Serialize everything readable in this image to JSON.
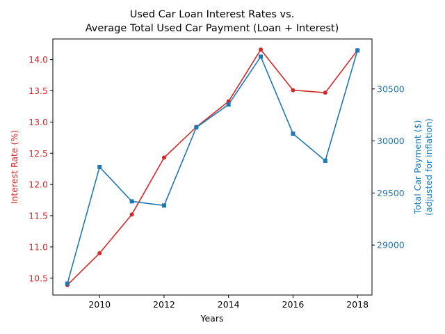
{
  "chart_data": {
    "type": "line",
    "title_lines": [
      "Used Car Loan Interest Rates vs.",
      "Average Total Used Car Payment (Loan + Interest)"
    ],
    "xlabel": "Years",
    "ylabel_left": "Interest Rate (%)",
    "ylabel_right_lines": [
      "Total Car Payment ($)",
      "(adjusted for inflation)"
    ],
    "x": [
      2009,
      2010,
      2011,
      2012,
      2013,
      2014,
      2015,
      2016,
      2017,
      2018
    ],
    "xlim": [
      2008.55,
      2018.45
    ],
    "x_ticks": [
      2010,
      2012,
      2014,
      2016,
      2018
    ],
    "series": [
      {
        "name": "Interest Rate",
        "axis": "left",
        "color": "#d62728",
        "marker": "circle",
        "values": [
          10.39,
          10.9,
          11.52,
          12.43,
          12.92,
          13.33,
          14.16,
          13.51,
          13.47,
          14.15
        ]
      },
      {
        "name": "Total Car Payment",
        "axis": "right",
        "color": "#1f77b4",
        "marker": "square",
        "values": [
          28630,
          29750,
          29420,
          29380,
          30130,
          30350,
          30810,
          30070,
          29810,
          30870
        ]
      }
    ],
    "ylim_left": [
      10.23,
      14.33
    ],
    "yticks_left": [
      "10.5",
      "11.0",
      "11.5",
      "12.0",
      "12.5",
      "13.0",
      "13.5",
      "14.0"
    ],
    "ylim_right": [
      28520,
      30980
    ],
    "yticks_right": [
      "29000",
      "29500",
      "30000",
      "30500"
    ],
    "grid": false
  }
}
